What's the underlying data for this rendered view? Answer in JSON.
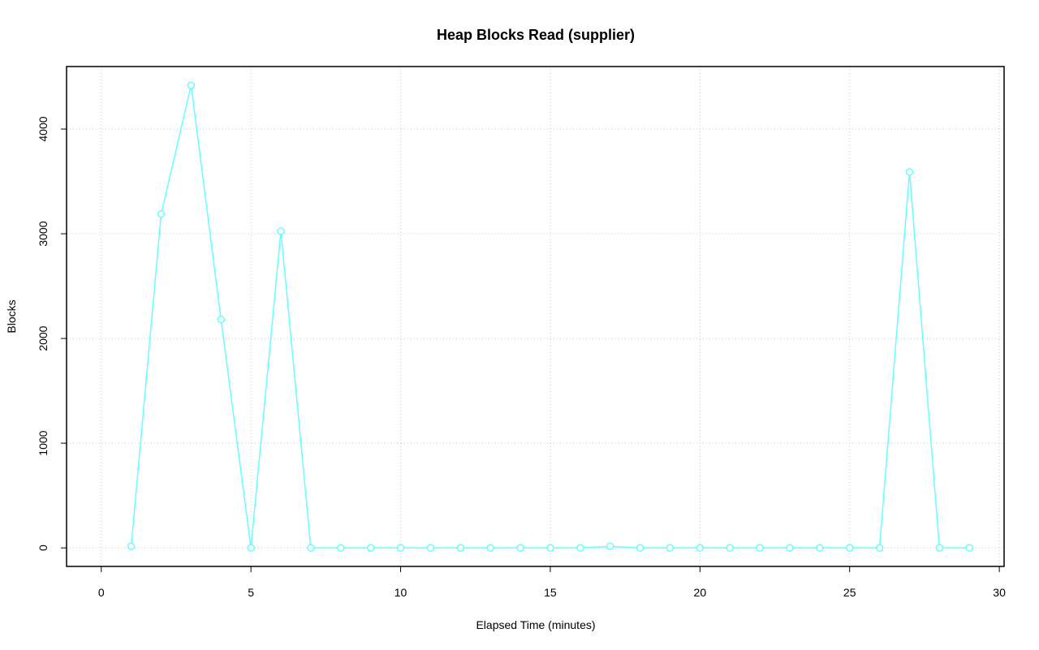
{
  "chart_data": {
    "type": "line",
    "title": "Heap Blocks Read (supplier)",
    "xlabel": "Elapsed Time (minutes)",
    "ylabel": "Blocks",
    "x": [
      1,
      2,
      3,
      4,
      5,
      6,
      7,
      8,
      9,
      10,
      11,
      12,
      13,
      14,
      15,
      16,
      17,
      18,
      19,
      20,
      21,
      22,
      23,
      24,
      25,
      26,
      27,
      28,
      29
    ],
    "series": [
      {
        "color": "#66ffff",
        "values": [
          15,
          3188,
          4418,
          2182,
          0,
          3025,
          0,
          0,
          0,
          0,
          0,
          0,
          0,
          0,
          0,
          0,
          15,
          0,
          0,
          0,
          0,
          0,
          0,
          0,
          0,
          0,
          3590,
          0,
          0
        ]
      }
    ],
    "xlim": [
      -1.16,
      30.16
    ],
    "ylim": [
      -177,
      4597
    ],
    "xticks": [
      0,
      5,
      10,
      15,
      20,
      25,
      30
    ],
    "yticks": [
      0,
      1000,
      2000,
      3000,
      4000
    ],
    "grid": true
  }
}
